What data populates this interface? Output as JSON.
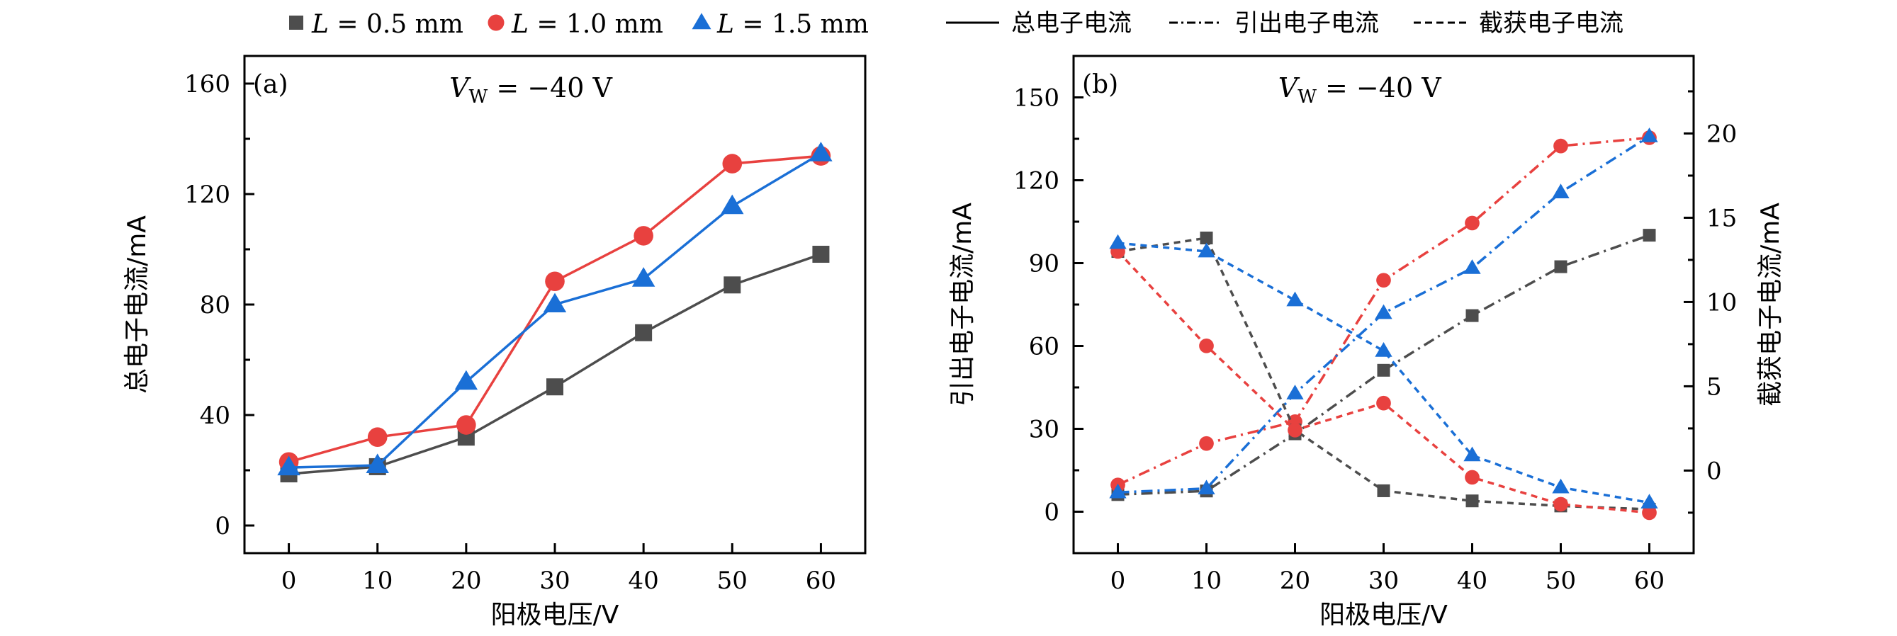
{
  "legend": {
    "series": [
      {
        "label": "L = 0.5 mm",
        "marker": "square",
        "color": "#4d4d4d"
      },
      {
        "label": "L = 1.0 mm",
        "marker": "circle",
        "color": "#e8413f"
      },
      {
        "label": "L = 1.5 mm",
        "marker": "triangle",
        "color": "#1a6fd6"
      }
    ],
    "linestyles": [
      {
        "label": "总电子电流",
        "style": "solid"
      },
      {
        "label": "引出电子电流",
        "style": "dashdot"
      },
      {
        "label": "截获电子电流",
        "style": "dashed"
      }
    ]
  },
  "chart_data": [
    {
      "type": "line",
      "panel_label": "(a)",
      "annotation": "V_W = −40 V",
      "annotation_main": "V",
      "annotation_sub": "W",
      "annotation_rest": " = −40 V",
      "xlabel": "阳极电压/V",
      "ylabel": "总电子电流/mA",
      "x": [
        0,
        10,
        20,
        30,
        40,
        50,
        60
      ],
      "xticks": [
        0,
        10,
        20,
        30,
        40,
        50,
        60
      ],
      "xlim": [
        -5,
        65
      ],
      "yticks": [
        0,
        40,
        80,
        120,
        160
      ],
      "ylim": [
        -10,
        170
      ],
      "linestyle": "solid",
      "series": [
        {
          "name": "L = 0.5 mm",
          "color": "#4d4d4d",
          "marker": "square",
          "values": [
            18.7,
            21.3,
            32.0,
            50.2,
            69.8,
            87.1,
            98.2
          ]
        },
        {
          "name": "L = 1.0 mm",
          "color": "#e8413f",
          "marker": "circle",
          "values": [
            23.0,
            32.0,
            36.4,
            88.4,
            104.9,
            131.0,
            133.8
          ]
        },
        {
          "name": "L = 1.5 mm",
          "color": "#1a6fd6",
          "marker": "triangle",
          "values": [
            21.0,
            21.8,
            52.0,
            80.0,
            89.3,
            115.6,
            134.7
          ]
        }
      ]
    },
    {
      "type": "line",
      "panel_label": "(b)",
      "annotation": "V_W = −40 V",
      "annotation_main": "V",
      "annotation_sub": "W",
      "annotation_rest": " = −40 V",
      "xlabel": "阳极电压/V",
      "ylabel": "引出电子电流/mA",
      "ylabel_right": "截获电子电流/mA",
      "x": [
        0,
        10,
        20,
        30,
        40,
        50,
        60
      ],
      "xticks": [
        0,
        10,
        20,
        30,
        40,
        50,
        60
      ],
      "xlim": [
        -5,
        65
      ],
      "yticks": [
        0,
        30,
        60,
        90,
        120,
        150
      ],
      "ylim": [
        -15,
        165
      ],
      "yticks_right": [
        0,
        5,
        10,
        15,
        20
      ],
      "ylim_right": [
        -4.9,
        24.6
      ],
      "series": [
        {
          "name": "L = 0.5 mm 引出",
          "axis": "left",
          "linestyle": "dashdot",
          "color": "#4d4d4d",
          "marker": "square",
          "values": [
            6.2,
            7.5,
            28.2,
            51.2,
            71.0,
            88.7,
            100.1
          ]
        },
        {
          "name": "L = 1.0 mm 引出",
          "axis": "left",
          "linestyle": "dashdot",
          "color": "#e8413f",
          "marker": "circle",
          "values": [
            9.7,
            24.7,
            32.6,
            83.8,
            104.5,
            132.4,
            135.4
          ]
        },
        {
          "name": "L = 1.5 mm 引出",
          "axis": "left",
          "linestyle": "dashdot",
          "color": "#1a6fd6",
          "marker": "triangle",
          "values": [
            7.0,
            8.4,
            42.8,
            71.9,
            88.2,
            115.6,
            135.9
          ]
        },
        {
          "name": "L = 0.5 mm 截获",
          "axis": "right",
          "linestyle": "dashed",
          "color": "#4d4d4d",
          "marker": "square",
          "values": [
            13.0,
            13.8,
            2.4,
            -1.2,
            -1.8,
            -2.1,
            -2.3
          ]
        },
        {
          "name": "L = 1.0 mm 截获",
          "axis": "right",
          "linestyle": "dashed",
          "color": "#e8413f",
          "marker": "circle",
          "values": [
            13.0,
            7.4,
            2.4,
            4.0,
            -0.4,
            -2.0,
            -2.5
          ]
        },
        {
          "name": "L = 1.5 mm 截获",
          "axis": "right",
          "linestyle": "dashed",
          "color": "#1a6fd6",
          "marker": "triangle",
          "values": [
            13.5,
            13.0,
            10.1,
            7.1,
            0.9,
            -1.0,
            -1.9
          ]
        }
      ]
    }
  ]
}
